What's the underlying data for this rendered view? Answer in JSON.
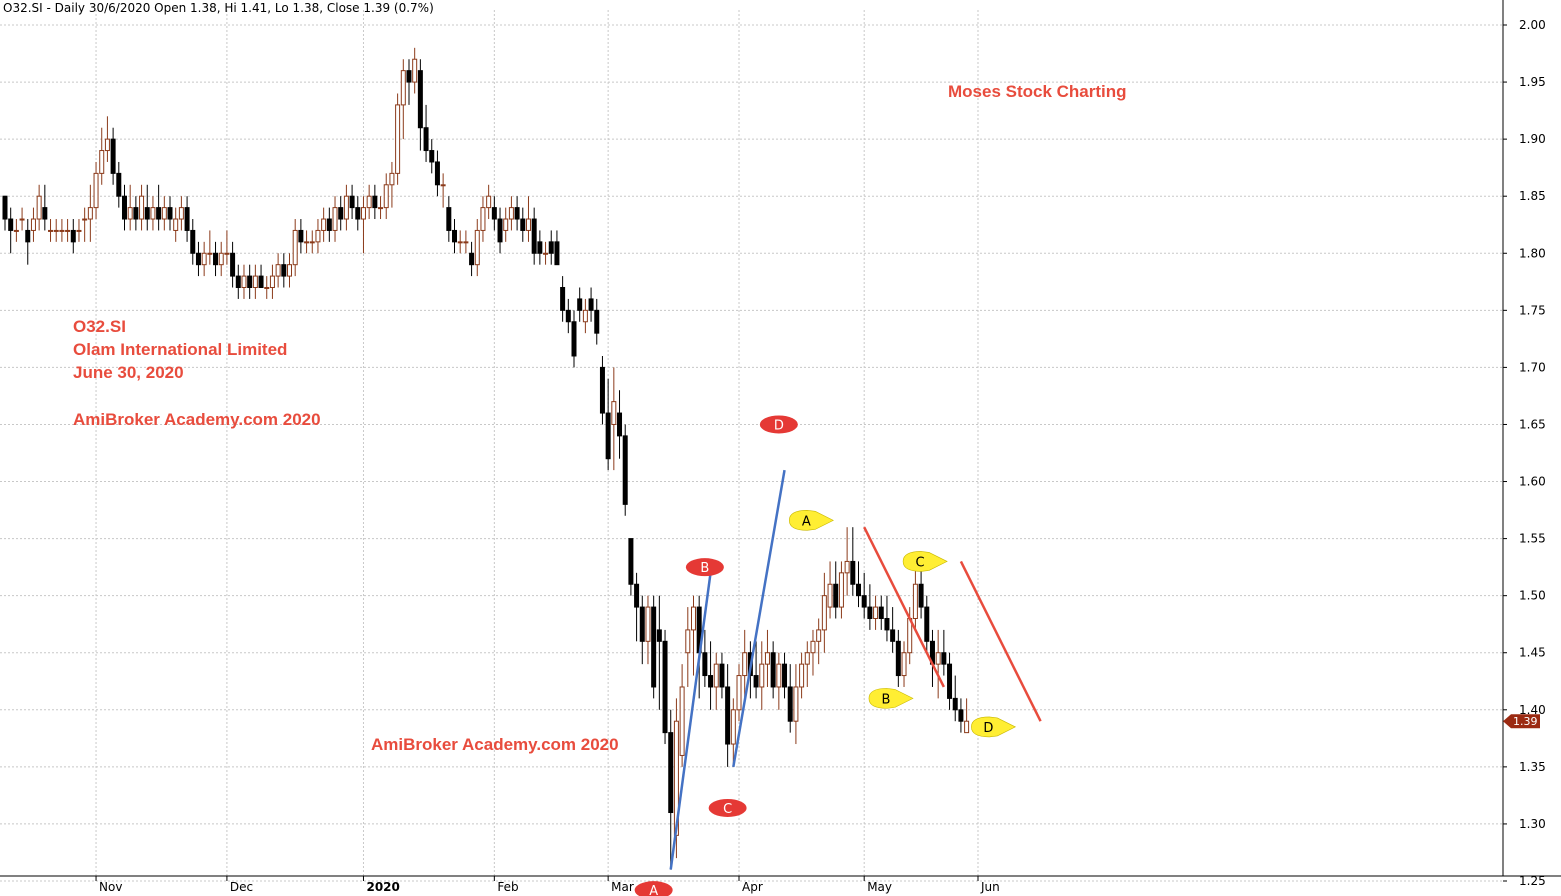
{
  "header": {
    "text": "O32.SI - Daily 30/6/2020 Open 1.38, Hi 1.41, Lo 1.38, Close 1.39 (0.7%)"
  },
  "annotations": {
    "brand_top": "Moses Stock Charting",
    "ticker": "O32.SI",
    "company": "Olam International Limited",
    "date": "June 30, 2020",
    "site1": "AmiBroker Academy.com  2020",
    "site2": "AmiBroker Academy.com  2020"
  },
  "colors": {
    "up_candle": "#8b3a1a",
    "down_candle": "#000000",
    "text_red": "#e84c3d",
    "grid": "#c8c8c8",
    "blue_line": "#4472c4",
    "red_line": "#e84c3d",
    "label_red": "#e53935",
    "label_yellow": "#ffee33",
    "price_tag": "#9b2a12"
  },
  "chart_data": {
    "type": "candlestick",
    "title": "O32.SI - Daily 30/6/2020 Open 1.38, Hi 1.41, Lo 1.38, Close 1.39 (0.7%)",
    "ylim": [
      1.25,
      2.0
    ],
    "yticks": [
      "2.00",
      "1.95",
      "1.90",
      "1.85",
      "1.80",
      "1.75",
      "1.70",
      "1.65",
      "1.60",
      "1.55",
      "1.50",
      "1.45",
      "1.40",
      "1.35",
      "1.30",
      "1.25"
    ],
    "xticks": [
      {
        "label": "Nov",
        "index": 16
      },
      {
        "label": "Dec",
        "index": 39
      },
      {
        "label": "2020",
        "index": 63,
        "bold": true
      },
      {
        "label": "Feb",
        "index": 86
      },
      {
        "label": "Mar",
        "index": 106
      },
      {
        "label": "Apr",
        "index": 129
      },
      {
        "label": "May",
        "index": 151
      },
      {
        "label": "Jun",
        "index": 171
      }
    ],
    "last_price": "1.39",
    "candles": [
      [
        1.85,
        1.85,
        1.82,
        1.83
      ],
      [
        1.83,
        1.84,
        1.8,
        1.82
      ],
      [
        1.82,
        1.83,
        1.81,
        1.82
      ],
      [
        1.83,
        1.84,
        1.82,
        1.83
      ],
      [
        1.82,
        1.83,
        1.79,
        1.81
      ],
      [
        1.82,
        1.84,
        1.81,
        1.83
      ],
      [
        1.83,
        1.86,
        1.82,
        1.85
      ],
      [
        1.84,
        1.86,
        1.82,
        1.83
      ],
      [
        1.82,
        1.83,
        1.81,
        1.82
      ],
      [
        1.82,
        1.83,
        1.81,
        1.82
      ],
      [
        1.82,
        1.83,
        1.81,
        1.82
      ],
      [
        1.82,
        1.83,
        1.81,
        1.82
      ],
      [
        1.82,
        1.83,
        1.8,
        1.81
      ],
      [
        1.82,
        1.83,
        1.81,
        1.82
      ],
      [
        1.83,
        1.84,
        1.81,
        1.83
      ],
      [
        1.83,
        1.86,
        1.81,
        1.84
      ],
      [
        1.84,
        1.88,
        1.83,
        1.87
      ],
      [
        1.87,
        1.91,
        1.86,
        1.89
      ],
      [
        1.89,
        1.92,
        1.88,
        1.9
      ],
      [
        1.9,
        1.91,
        1.86,
        1.87
      ],
      [
        1.87,
        1.88,
        1.84,
        1.85
      ],
      [
        1.85,
        1.86,
        1.82,
        1.83
      ],
      [
        1.83,
        1.86,
        1.82,
        1.84
      ],
      [
        1.84,
        1.85,
        1.82,
        1.83
      ],
      [
        1.83,
        1.86,
        1.82,
        1.85
      ],
      [
        1.84,
        1.86,
        1.82,
        1.83
      ],
      [
        1.83,
        1.85,
        1.82,
        1.84
      ],
      [
        1.84,
        1.86,
        1.82,
        1.83
      ],
      [
        1.83,
        1.85,
        1.82,
        1.84
      ],
      [
        1.84,
        1.85,
        1.82,
        1.83
      ],
      [
        1.82,
        1.84,
        1.81,
        1.83
      ],
      [
        1.83,
        1.85,
        1.82,
        1.84
      ],
      [
        1.84,
        1.85,
        1.81,
        1.82
      ],
      [
        1.82,
        1.83,
        1.79,
        1.8
      ],
      [
        1.8,
        1.81,
        1.78,
        1.79
      ],
      [
        1.79,
        1.81,
        1.78,
        1.8
      ],
      [
        1.8,
        1.82,
        1.79,
        1.8
      ],
      [
        1.8,
        1.81,
        1.78,
        1.79
      ],
      [
        1.79,
        1.81,
        1.78,
        1.8
      ],
      [
        1.8,
        1.82,
        1.79,
        1.8
      ],
      [
        1.8,
        1.81,
        1.77,
        1.78
      ],
      [
        1.78,
        1.79,
        1.76,
        1.77
      ],
      [
        1.77,
        1.79,
        1.76,
        1.78
      ],
      [
        1.78,
        1.79,
        1.76,
        1.77
      ],
      [
        1.77,
        1.79,
        1.76,
        1.78
      ],
      [
        1.78,
        1.79,
        1.77,
        1.77
      ],
      [
        1.77,
        1.78,
        1.76,
        1.77
      ],
      [
        1.77,
        1.79,
        1.76,
        1.78
      ],
      [
        1.78,
        1.8,
        1.77,
        1.79
      ],
      [
        1.79,
        1.8,
        1.77,
        1.78
      ],
      [
        1.78,
        1.8,
        1.77,
        1.79
      ],
      [
        1.79,
        1.83,
        1.78,
        1.82
      ],
      [
        1.82,
        1.83,
        1.8,
        1.81
      ],
      [
        1.81,
        1.82,
        1.8,
        1.81
      ],
      [
        1.81,
        1.82,
        1.8,
        1.81
      ],
      [
        1.81,
        1.83,
        1.8,
        1.82
      ],
      [
        1.82,
        1.84,
        1.81,
        1.83
      ],
      [
        1.83,
        1.84,
        1.81,
        1.82
      ],
      [
        1.82,
        1.85,
        1.81,
        1.84
      ],
      [
        1.84,
        1.85,
        1.82,
        1.83
      ],
      [
        1.83,
        1.86,
        1.82,
        1.85
      ],
      [
        1.85,
        1.86,
        1.83,
        1.84
      ],
      [
        1.84,
        1.85,
        1.82,
        1.83
      ],
      [
        1.83,
        1.85,
        1.8,
        1.84
      ],
      [
        1.84,
        1.86,
        1.83,
        1.85
      ],
      [
        1.85,
        1.86,
        1.83,
        1.84
      ],
      [
        1.84,
        1.85,
        1.83,
        1.84
      ],
      [
        1.84,
        1.87,
        1.83,
        1.86
      ],
      [
        1.86,
        1.88,
        1.84,
        1.87
      ],
      [
        1.87,
        1.94,
        1.86,
        1.93
      ],
      [
        1.93,
        1.97,
        1.9,
        1.96
      ],
      [
        1.96,
        1.97,
        1.93,
        1.95
      ],
      [
        1.95,
        1.98,
        1.94,
        1.97
      ],
      [
        1.96,
        1.97,
        1.89,
        1.91
      ],
      [
        1.91,
        1.93,
        1.88,
        1.89
      ],
      [
        1.89,
        1.9,
        1.87,
        1.88
      ],
      [
        1.88,
        1.89,
        1.85,
        1.86
      ],
      [
        1.86,
        1.87,
        1.84,
        1.86
      ],
      [
        1.84,
        1.85,
        1.81,
        1.82
      ],
      [
        1.82,
        1.83,
        1.8,
        1.81
      ],
      [
        1.81,
        1.82,
        1.8,
        1.81
      ],
      [
        1.81,
        1.82,
        1.8,
        1.81
      ],
      [
        1.8,
        1.81,
        1.78,
        1.79
      ],
      [
        1.79,
        1.83,
        1.78,
        1.82
      ],
      [
        1.82,
        1.85,
        1.81,
        1.84
      ],
      [
        1.84,
        1.86,
        1.83,
        1.85
      ],
      [
        1.84,
        1.85,
        1.82,
        1.83
      ],
      [
        1.83,
        1.84,
        1.8,
        1.81
      ],
      [
        1.82,
        1.84,
        1.81,
        1.83
      ],
      [
        1.83,
        1.85,
        1.82,
        1.84
      ],
      [
        1.84,
        1.85,
        1.82,
        1.83
      ],
      [
        1.83,
        1.84,
        1.81,
        1.82
      ],
      [
        1.82,
        1.85,
        1.81,
        1.83
      ],
      [
        1.83,
        1.84,
        1.79,
        1.8
      ],
      [
        1.81,
        1.82,
        1.79,
        1.8
      ],
      [
        1.8,
        1.81,
        1.79,
        1.8
      ],
      [
        1.81,
        1.82,
        1.79,
        1.8
      ],
      [
        1.81,
        1.82,
        1.79,
        1.79
      ],
      [
        1.77,
        1.78,
        1.74,
        1.75
      ],
      [
        1.75,
        1.76,
        1.73,
        1.74
      ],
      [
        1.74,
        1.75,
        1.7,
        1.71
      ],
      [
        1.76,
        1.77,
        1.74,
        1.75
      ],
      [
        1.74,
        1.76,
        1.73,
        1.75
      ],
      [
        1.76,
        1.77,
        1.74,
        1.75
      ],
      [
        1.75,
        1.76,
        1.72,
        1.73
      ],
      [
        1.7,
        1.71,
        1.65,
        1.66
      ],
      [
        1.66,
        1.69,
        1.61,
        1.62
      ],
      [
        1.65,
        1.7,
        1.61,
        1.67
      ],
      [
        1.66,
        1.68,
        1.62,
        1.64
      ],
      [
        1.64,
        1.65,
        1.57,
        1.58
      ],
      [
        1.55,
        1.55,
        1.5,
        1.51
      ],
      [
        1.51,
        1.52,
        1.46,
        1.49
      ],
      [
        1.49,
        1.5,
        1.44,
        1.46
      ],
      [
        1.46,
        1.5,
        1.44,
        1.49
      ],
      [
        1.49,
        1.5,
        1.41,
        1.42
      ],
      [
        1.47,
        1.5,
        1.4,
        1.46
      ],
      [
        1.46,
        1.47,
        1.37,
        1.38
      ],
      [
        1.38,
        1.4,
        1.26,
        1.31
      ],
      [
        1.29,
        1.41,
        1.27,
        1.39
      ],
      [
        1.36,
        1.44,
        1.35,
        1.42
      ],
      [
        1.45,
        1.49,
        1.42,
        1.47
      ],
      [
        1.47,
        1.5,
        1.43,
        1.49
      ],
      [
        1.49,
        1.5,
        1.41,
        1.45
      ],
      [
        1.45,
        1.47,
        1.42,
        1.43
      ],
      [
        1.43,
        1.46,
        1.4,
        1.42
      ],
      [
        1.42,
        1.45,
        1.4,
        1.44
      ],
      [
        1.44,
        1.45,
        1.41,
        1.42
      ],
      [
        1.42,
        1.44,
        1.35,
        1.37
      ],
      [
        1.37,
        1.41,
        1.35,
        1.4
      ],
      [
        1.4,
        1.44,
        1.39,
        1.43
      ],
      [
        1.43,
        1.47,
        1.41,
        1.45
      ],
      [
        1.45,
        1.46,
        1.41,
        1.43
      ],
      [
        1.43,
        1.46,
        1.41,
        1.42
      ],
      [
        1.42,
        1.46,
        1.4,
        1.44
      ],
      [
        1.44,
        1.47,
        1.42,
        1.45
      ],
      [
        1.45,
        1.46,
        1.41,
        1.42
      ],
      [
        1.42,
        1.45,
        1.4,
        1.44
      ],
      [
        1.44,
        1.45,
        1.41,
        1.42
      ],
      [
        1.42,
        1.44,
        1.38,
        1.39
      ],
      [
        1.39,
        1.44,
        1.37,
        1.42
      ],
      [
        1.42,
        1.45,
        1.41,
        1.44
      ],
      [
        1.44,
        1.46,
        1.42,
        1.45
      ],
      [
        1.45,
        1.47,
        1.43,
        1.46
      ],
      [
        1.46,
        1.48,
        1.44,
        1.47
      ],
      [
        1.47,
        1.52,
        1.45,
        1.5
      ],
      [
        1.49,
        1.53,
        1.48,
        1.51
      ],
      [
        1.51,
        1.53,
        1.48,
        1.49
      ],
      [
        1.49,
        1.53,
        1.48,
        1.52
      ],
      [
        1.52,
        1.56,
        1.5,
        1.53
      ],
      [
        1.53,
        1.56,
        1.5,
        1.51
      ],
      [
        1.51,
        1.53,
        1.49,
        1.5
      ],
      [
        1.5,
        1.52,
        1.48,
        1.49
      ],
      [
        1.49,
        1.51,
        1.47,
        1.48
      ],
      [
        1.48,
        1.5,
        1.47,
        1.49
      ],
      [
        1.49,
        1.5,
        1.47,
        1.48
      ],
      [
        1.48,
        1.5,
        1.46,
        1.47
      ],
      [
        1.47,
        1.49,
        1.45,
        1.46
      ],
      [
        1.46,
        1.47,
        1.42,
        1.43
      ],
      [
        1.43,
        1.46,
        1.42,
        1.45
      ],
      [
        1.45,
        1.49,
        1.44,
        1.48
      ],
      [
        1.48,
        1.53,
        1.47,
        1.51
      ],
      [
        1.51,
        1.53,
        1.48,
        1.49
      ],
      [
        1.49,
        1.5,
        1.45,
        1.46
      ],
      [
        1.46,
        1.47,
        1.42,
        1.44
      ],
      [
        1.44,
        1.47,
        1.41,
        1.45
      ],
      [
        1.45,
        1.47,
        1.43,
        1.44
      ],
      [
        1.44,
        1.45,
        1.4,
        1.41
      ],
      [
        1.41,
        1.43,
        1.39,
        1.4
      ],
      [
        1.4,
        1.41,
        1.38,
        1.39
      ],
      [
        1.38,
        1.41,
        1.38,
        1.39
      ]
    ],
    "trend_lines": [
      {
        "color": "blue",
        "from": [
          117,
          1.26
        ],
        "to": [
          124,
          1.52
        ]
      },
      {
        "color": "blue",
        "from": [
          128,
          1.35
        ],
        "to": [
          137,
          1.61
        ]
      },
      {
        "color": "red",
        "from": [
          151,
          1.56
        ],
        "to": [
          165,
          1.42
        ]
      },
      {
        "color": "red",
        "from": [
          168,
          1.53
        ],
        "to": [
          182,
          1.39
        ]
      }
    ],
    "wave_labels": [
      {
        "text": "A",
        "style": "red",
        "index": 114,
        "price": 1.242
      },
      {
        "text": "B",
        "style": "red",
        "index": 123,
        "price": 1.525
      },
      {
        "text": "C",
        "style": "red",
        "index": 127,
        "price": 1.314
      },
      {
        "text": "D",
        "style": "red",
        "index": 136,
        "price": 1.65
      },
      {
        "text": "A",
        "style": "yellow",
        "index": 141,
        "price": 1.566
      },
      {
        "text": "B",
        "style": "yellow",
        "index": 155,
        "price": 1.41
      },
      {
        "text": "C",
        "style": "yellow",
        "index": 161,
        "price": 1.53
      },
      {
        "text": "D",
        "style": "yellow",
        "index": 173,
        "price": 1.385
      }
    ]
  }
}
